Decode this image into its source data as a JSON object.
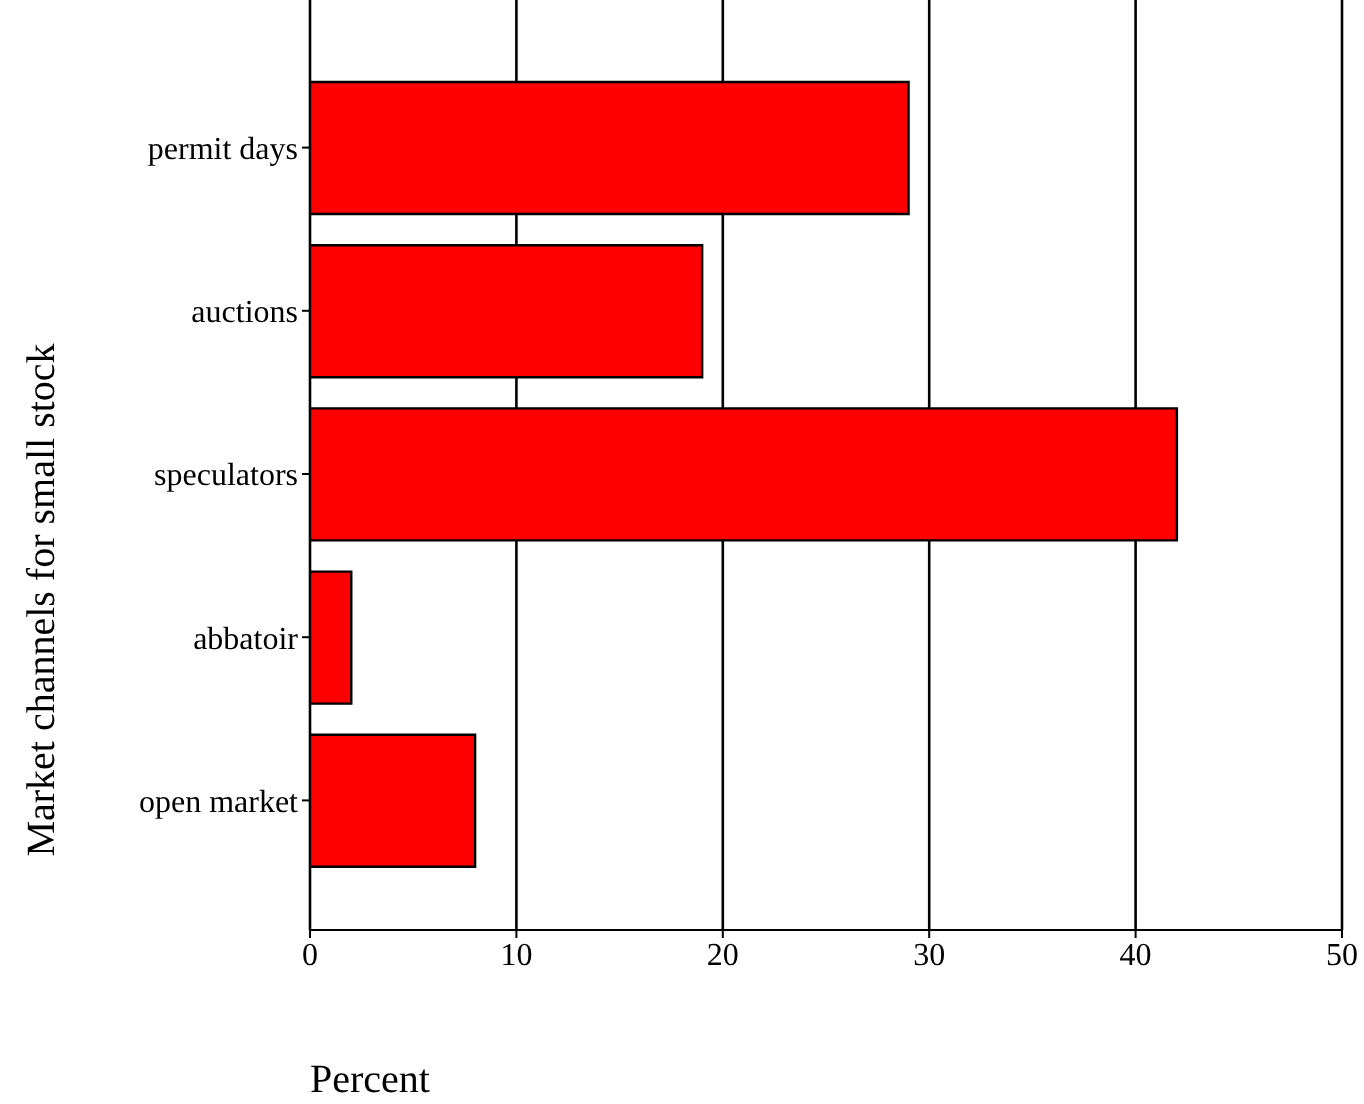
{
  "chart_data": {
    "type": "bar",
    "orientation": "horizontal",
    "xlabel": "Percent",
    "ylabel": "Market channels for small stock",
    "categories": [
      "permit days",
      "auctions",
      "speculators",
      "abbatoir",
      "open market"
    ],
    "values": [
      29,
      19,
      42,
      2,
      8
    ],
    "color": "#ff0000",
    "xlim": [
      0,
      50
    ],
    "xticks": [
      0,
      10,
      20,
      30,
      40,
      50
    ],
    "grid": "x"
  }
}
